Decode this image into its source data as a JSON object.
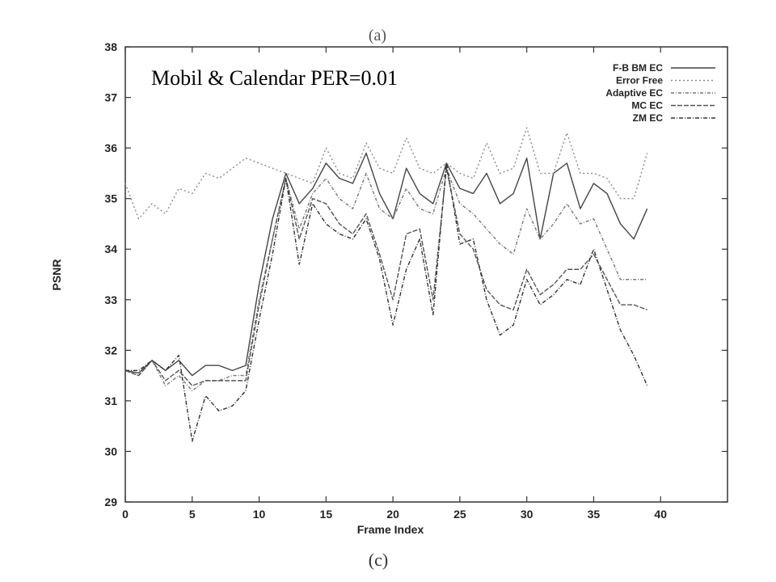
{
  "top_caption": "(a)",
  "caption": "(c)",
  "chart_data": {
    "type": "line",
    "title": "Mobil & Calendar  PER=0.01",
    "xlabel": "Frame Index",
    "ylabel": "PSNR",
    "xlim": [
      0,
      45
    ],
    "ylim": [
      29,
      38
    ],
    "xticks": [
      0,
      5,
      10,
      15,
      20,
      25,
      30,
      35,
      40
    ],
    "yticks": [
      29,
      30,
      31,
      32,
      33,
      34,
      35,
      36,
      37,
      38
    ],
    "grid": false,
    "legend_position": "top-right",
    "x": [
      0,
      1,
      2,
      3,
      4,
      5,
      6,
      7,
      8,
      9,
      10,
      11,
      12,
      13,
      14,
      15,
      16,
      17,
      18,
      19,
      20,
      21,
      22,
      23,
      24,
      25,
      26,
      27,
      28,
      29,
      30,
      31,
      32,
      33,
      34,
      35,
      36,
      37,
      38,
      39
    ],
    "series": [
      {
        "name": "F-B BM EC",
        "color": "#444444",
        "dash": "none",
        "values": [
          31.6,
          31.55,
          31.8,
          31.6,
          31.8,
          31.5,
          31.7,
          31.7,
          31.6,
          31.7,
          33.3,
          34.6,
          35.5,
          34.9,
          35.2,
          35.7,
          35.4,
          35.3,
          35.9,
          35.1,
          34.6,
          35.6,
          35.1,
          34.9,
          35.7,
          35.2,
          35.1,
          35.5,
          34.9,
          35.1,
          35.8,
          34.2,
          35.5,
          35.7,
          34.8,
          35.3,
          35.1,
          34.5,
          34.2,
          34.8
        ]
      },
      {
        "name": "Error Free",
        "color": "#888888",
        "dash": "2,3",
        "values": [
          35.3,
          34.6,
          34.9,
          34.7,
          35.2,
          35.1,
          35.5,
          35.4,
          35.6,
          35.8,
          35.7,
          35.6,
          35.5,
          35.4,
          35.3,
          36.0,
          35.5,
          35.4,
          36.1,
          35.6,
          35.5,
          36.2,
          35.6,
          35.5,
          35.7,
          35.5,
          35.4,
          36.1,
          35.5,
          35.6,
          36.4,
          35.5,
          35.5,
          36.3,
          35.5,
          35.5,
          35.4,
          35.0,
          35.0,
          35.9
        ]
      },
      {
        "name": "Adaptive EC",
        "color": "#777777",
        "dash": "4,2,1,2",
        "values": [
          31.6,
          31.5,
          31.8,
          31.3,
          31.5,
          31.2,
          31.4,
          31.4,
          31.5,
          31.5,
          33.0,
          34.2,
          35.4,
          34.4,
          35.1,
          35.4,
          35.0,
          34.8,
          35.5,
          34.8,
          34.6,
          35.2,
          34.8,
          34.7,
          35.6,
          34.9,
          34.7,
          34.4,
          34.1,
          33.9,
          34.8,
          34.2,
          34.5,
          34.9,
          34.5,
          34.6,
          34.0,
          33.4,
          33.4,
          33.4
        ]
      },
      {
        "name": "MC EC",
        "color": "#555555",
        "dash": "6,2",
        "values": [
          31.6,
          31.5,
          31.8,
          31.4,
          31.6,
          31.3,
          31.4,
          31.4,
          31.4,
          31.4,
          32.9,
          34.2,
          35.4,
          34.2,
          35.0,
          34.9,
          34.5,
          34.3,
          34.7,
          33.9,
          33.0,
          34.3,
          34.4,
          33.0,
          35.6,
          34.3,
          34.0,
          33.2,
          32.9,
          32.8,
          33.6,
          33.1,
          33.3,
          33.6,
          33.6,
          33.9,
          33.4,
          32.9,
          32.9,
          32.8
        ]
      },
      {
        "name": "ZM EC",
        "color": "#333333",
        "dash": "5,2,1,2",
        "values": [
          31.6,
          31.6,
          31.8,
          31.6,
          31.9,
          30.2,
          31.1,
          30.8,
          30.9,
          31.2,
          32.6,
          33.9,
          35.4,
          33.7,
          34.9,
          34.5,
          34.3,
          34.2,
          34.6,
          33.8,
          32.5,
          33.6,
          34.2,
          32.7,
          35.7,
          34.1,
          34.2,
          33.0,
          32.3,
          32.5,
          33.4,
          32.9,
          33.1,
          33.4,
          33.3,
          34.0,
          33.2,
          32.4,
          31.9,
          31.3
        ]
      }
    ]
  }
}
